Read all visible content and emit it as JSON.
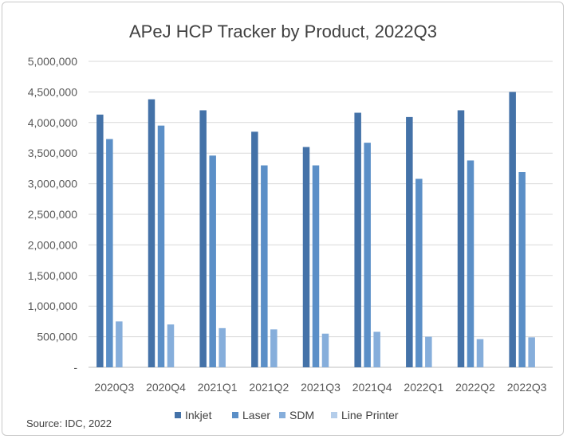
{
  "chart_data": {
    "type": "bar",
    "title": "APeJ HCP Tracker by Product, 2022Q3",
    "xlabel": "",
    "ylabel": "",
    "categories": [
      "2020Q3",
      "2020Q4",
      "2021Q1",
      "2021Q2",
      "2021Q3",
      "2021Q4",
      "2022Q1",
      "2022Q2",
      "2022Q3"
    ],
    "series": [
      {
        "name": "Inkjet",
        "color": "#4472a8",
        "values": [
          4130000,
          4380000,
          4200000,
          3850000,
          3600000,
          4160000,
          4090000,
          4200000,
          4500000
        ]
      },
      {
        "name": "Laser",
        "color": "#5b8fc7",
        "values": [
          3730000,
          3950000,
          3460000,
          3300000,
          3300000,
          3670000,
          3080000,
          3380000,
          3190000
        ]
      },
      {
        "name": "SDM",
        "color": "#86aedb",
        "values": [
          750000,
          700000,
          640000,
          620000,
          550000,
          580000,
          500000,
          460000,
          490000
        ]
      },
      {
        "name": "Line Printer",
        "color": "#b4cdea",
        "values": [
          0,
          0,
          0,
          0,
          0,
          0,
          0,
          0,
          0
        ]
      }
    ],
    "ylim": [
      0,
      5000000
    ],
    "yticks": [
      0,
      500000,
      1000000,
      1500000,
      2000000,
      2500000,
      3000000,
      3500000,
      4000000,
      4500000,
      5000000
    ],
    "ytick_labels": [
      "-",
      "500,000",
      "1,000,000",
      "1,500,000",
      "2,000,000",
      "2,500,000",
      "3,000,000",
      "3,500,000",
      "4,000,000",
      "4,500,000",
      "5,000,000"
    ],
    "grid": true,
    "legend_position": "bottom"
  },
  "source": "Source: IDC, 2022"
}
